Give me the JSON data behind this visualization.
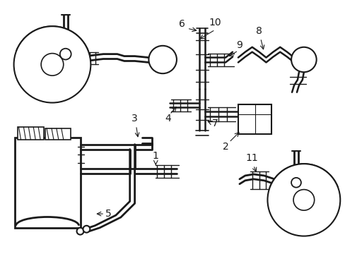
{
  "background_color": "#ffffff",
  "line_color": "#1a1a1a",
  "figsize": [
    4.89,
    3.6
  ],
  "dpi": 100,
  "label_fontsize": 10
}
